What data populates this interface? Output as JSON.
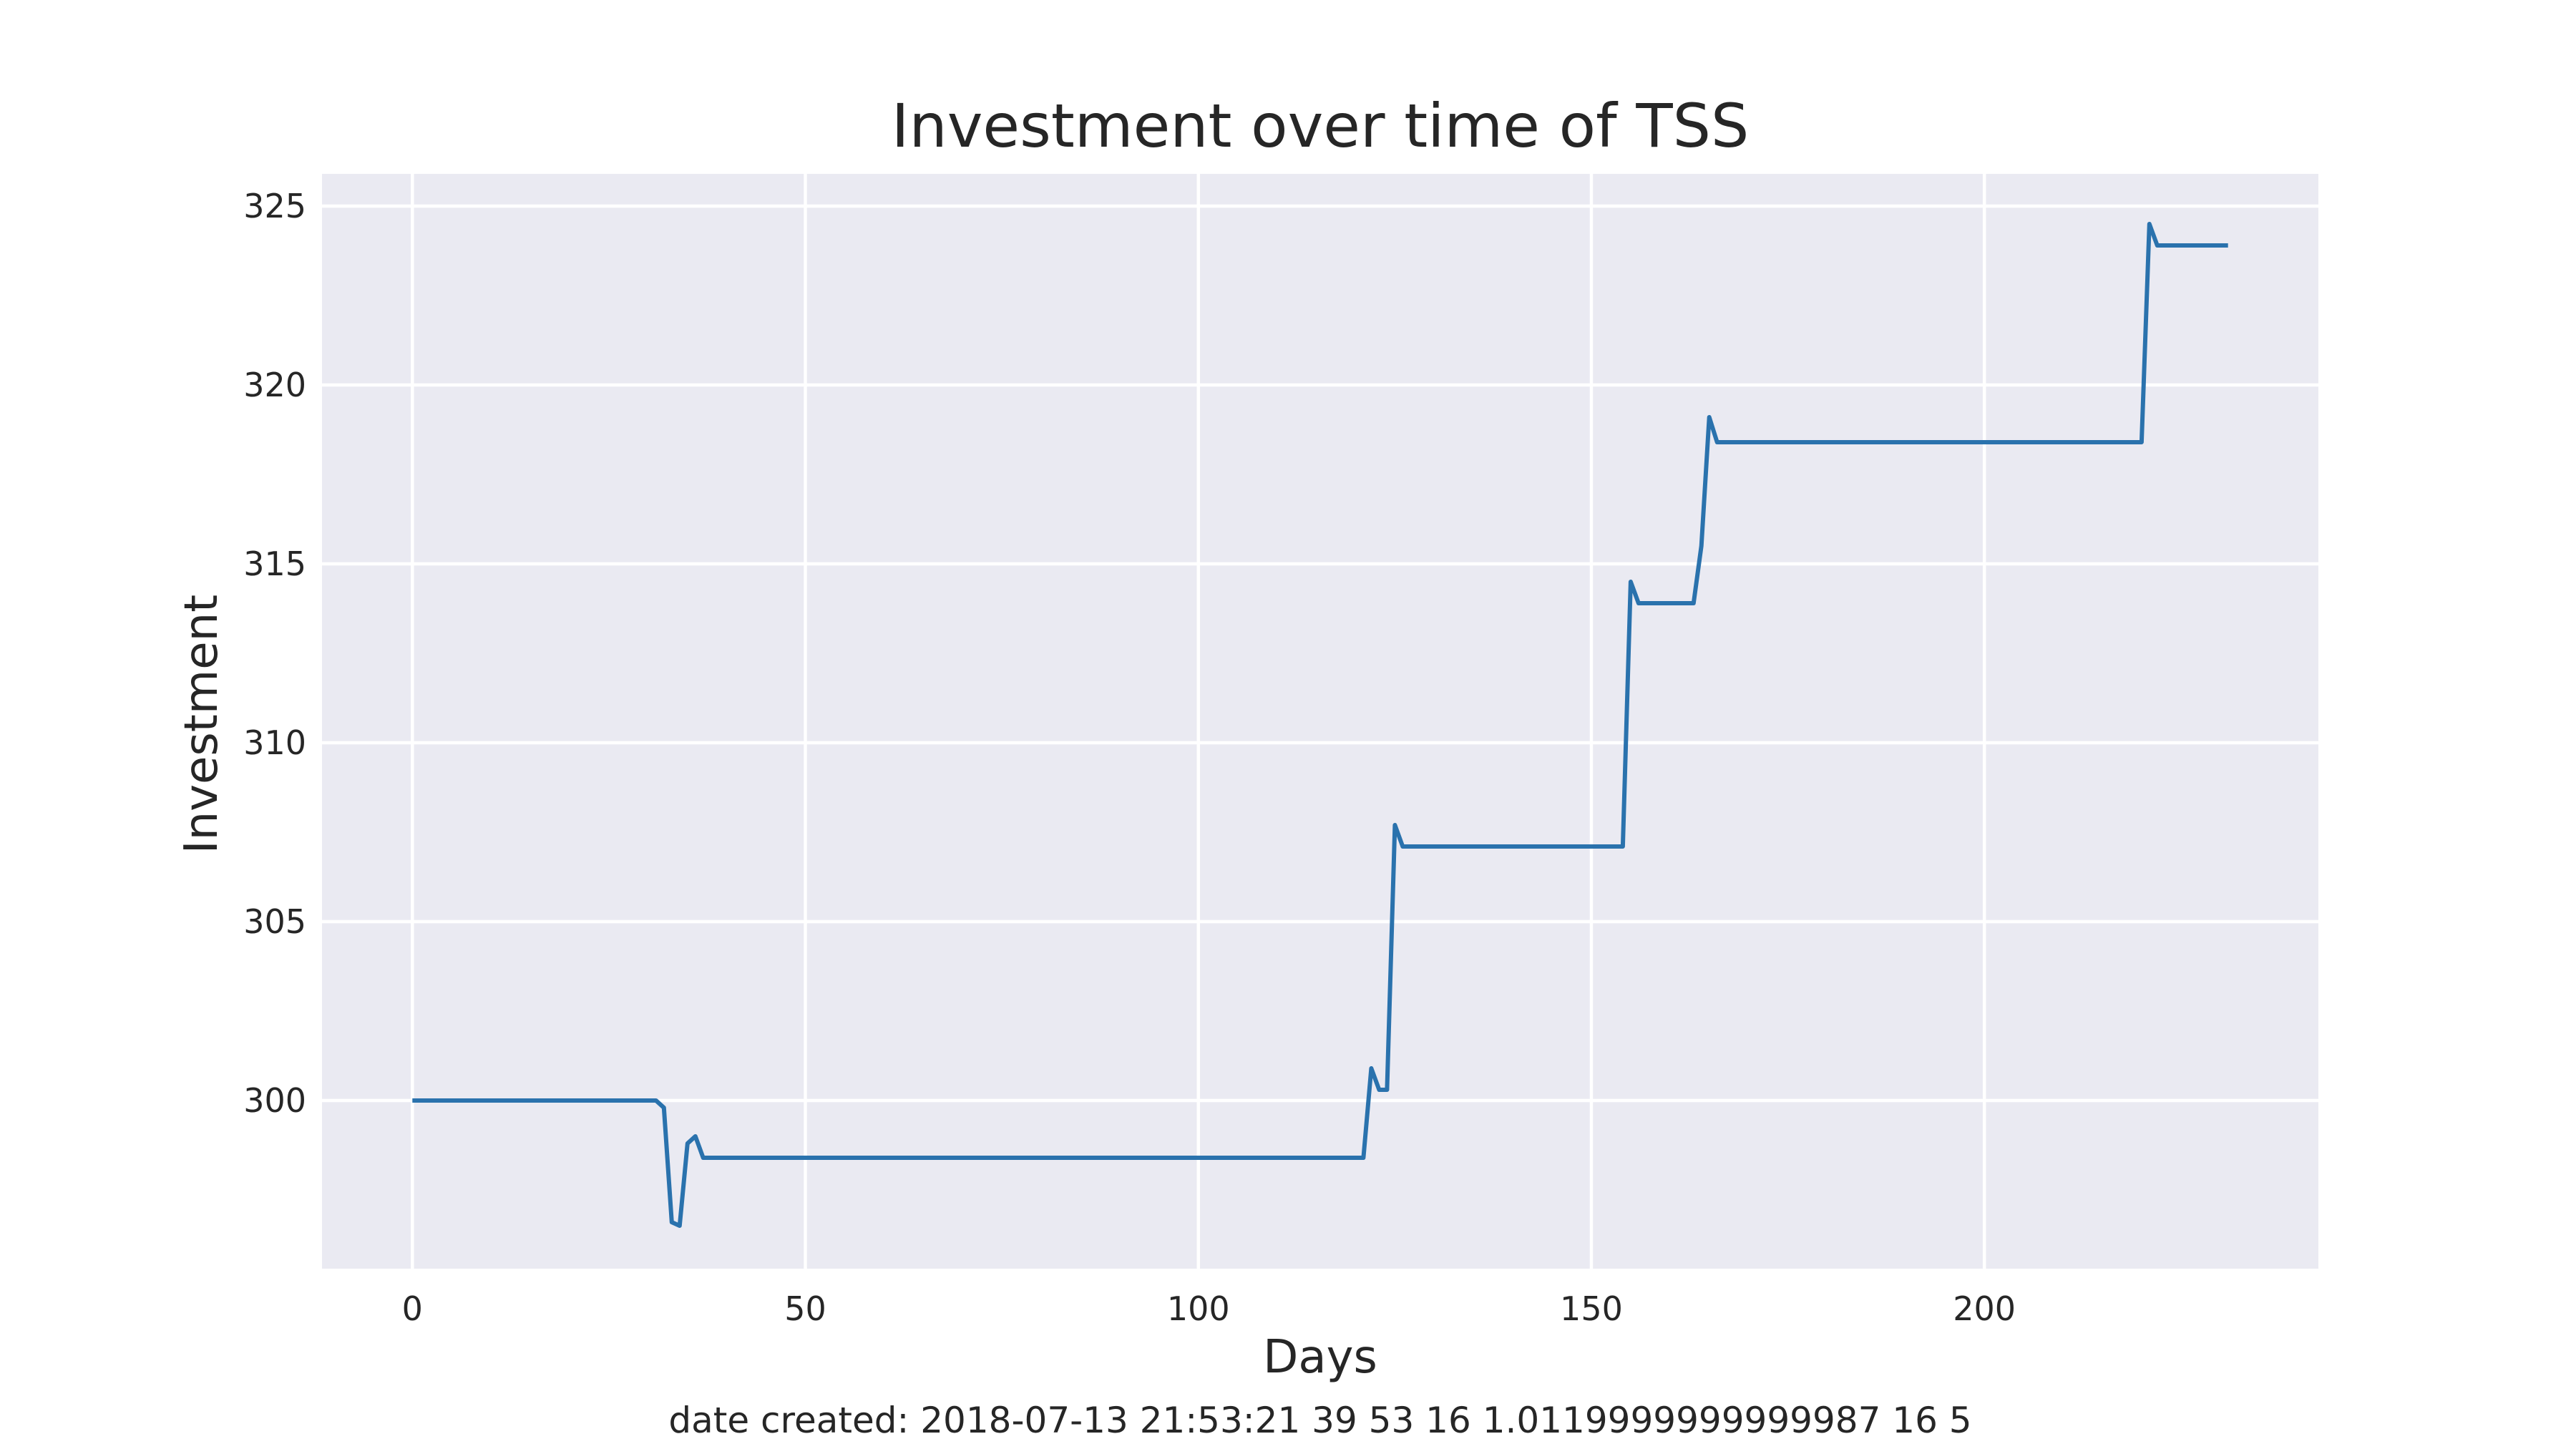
{
  "chart_data": {
    "type": "line",
    "title": "Investment over time of TSS",
    "xlabel": "Days",
    "ylabel": "Investment",
    "xlim": [
      -11.5,
      242.5
    ],
    "ylim": [
      295.3,
      325.9
    ],
    "xticks": [
      0,
      50,
      100,
      150,
      200
    ],
    "yticks": [
      300,
      305,
      310,
      315,
      320,
      325
    ],
    "grid": true,
    "series": [
      {
        "color": "#2a72ad",
        "points": [
          [
            0,
            300.0
          ],
          [
            31,
            300.0
          ],
          [
            32,
            299.8
          ],
          [
            33,
            296.6
          ],
          [
            34,
            296.5
          ],
          [
            35,
            298.8
          ],
          [
            36,
            299.0
          ],
          [
            37,
            298.4
          ],
          [
            121,
            298.4
          ],
          [
            122,
            300.9
          ],
          [
            123,
            300.3
          ],
          [
            124,
            300.3
          ],
          [
            125,
            307.7
          ],
          [
            126,
            307.1
          ],
          [
            154,
            307.1
          ],
          [
            155,
            314.5
          ],
          [
            156,
            313.9
          ],
          [
            163,
            313.9
          ],
          [
            164,
            315.5
          ],
          [
            165,
            319.1
          ],
          [
            166,
            318.4
          ],
          [
            220,
            318.4
          ],
          [
            221,
            324.5
          ],
          [
            222,
            323.9
          ],
          [
            231,
            323.9
          ]
        ]
      }
    ]
  },
  "footer_note": "date created: 2018-07-13 21:53:21 39 53 16 1.0119999999999987 16 5"
}
